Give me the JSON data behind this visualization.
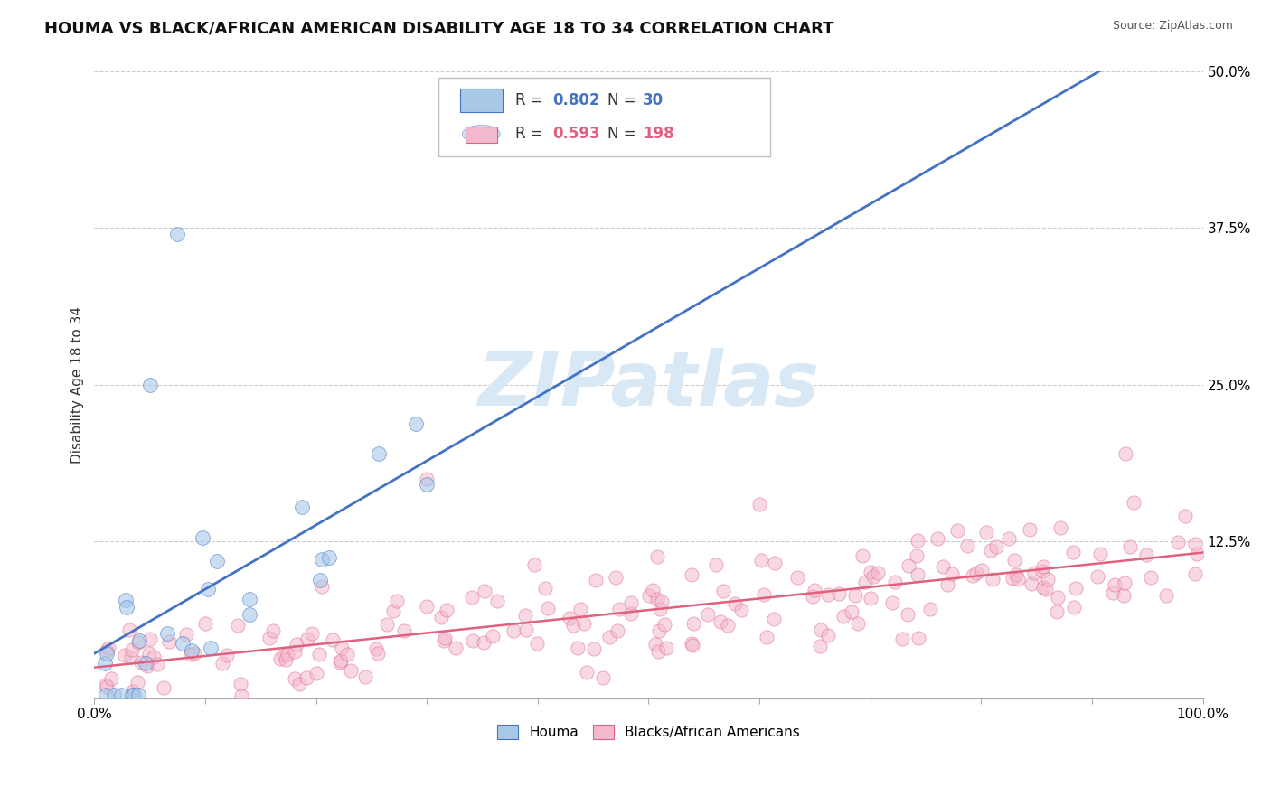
{
  "title": "HOUMA VS BLACK/AFRICAN AMERICAN DISABILITY AGE 18 TO 34 CORRELATION CHART",
  "source": "Source: ZipAtlas.com",
  "ylabel": "Disability Age 18 to 34",
  "xlim": [
    0,
    1.0
  ],
  "ylim": [
    0,
    0.5
  ],
  "xticks": [
    0.0,
    0.1,
    0.2,
    0.3,
    0.4,
    0.5,
    0.6,
    0.7,
    0.8,
    0.9,
    1.0
  ],
  "xticklabels": [
    "0.0%",
    "",
    "",
    "",
    "",
    "",
    "",
    "",
    "",
    "",
    "100.0%"
  ],
  "yticks": [
    0.0,
    0.125,
    0.25,
    0.375,
    0.5
  ],
  "yticklabels": [
    "",
    "12.5%",
    "25.0%",
    "37.5%",
    "50.0%"
  ],
  "houma_R": 0.802,
  "houma_N": 30,
  "black_R": 0.593,
  "black_N": 198,
  "houma_color": "#a8c8e8",
  "houma_line_color": "#4472c4",
  "black_color": "#f4b8cc",
  "black_line_color": "#e06080",
  "background_color": "#ffffff",
  "grid_color": "#cccccc",
  "title_fontsize": 13,
  "axis_label_fontsize": 11,
  "tick_fontsize": 11,
  "legend_box_color": "#bbbbbb",
  "watermark_color": "#d8e8f4",
  "source_color": "#555555"
}
